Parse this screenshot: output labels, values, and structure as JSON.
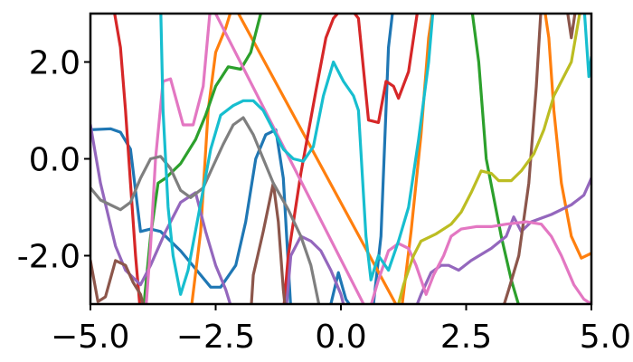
{
  "chart_data": {
    "type": "line",
    "title": "",
    "xlabel": "",
    "ylabel": "",
    "xlim": [
      -5,
      5
    ],
    "ylim": [
      -3,
      3
    ],
    "x_ticks": [
      -5,
      -2.5,
      0,
      2.5,
      5
    ],
    "x_tick_labels": [
      "−5.0",
      "−2.5",
      "0.0",
      "2.5",
      "5.0"
    ],
    "y_ticks": [
      2,
      0,
      -2
    ],
    "y_tick_labels": [
      "2.0",
      "0.0",
      "-2.0"
    ],
    "grid": false,
    "legend": "none",
    "series": [
      {
        "color": "#1f77b4",
        "points": [
          [
            -5,
            0.6
          ],
          [
            -4.6,
            0.62
          ],
          [
            -4.4,
            0.55
          ],
          [
            -4.2,
            0.2
          ],
          [
            -4.0,
            -1.5
          ],
          [
            -3.8,
            -1.45
          ],
          [
            -3.6,
            -1.5
          ],
          [
            -3.2,
            -1.9
          ],
          [
            -2.8,
            -2.4
          ],
          [
            -2.6,
            -2.65
          ],
          [
            -2.4,
            -2.65
          ],
          [
            -2.1,
            -2.2
          ],
          [
            -1.9,
            -1.3
          ],
          [
            -1.7,
            0.0
          ],
          [
            -1.5,
            0.5
          ],
          [
            -1.3,
            0.6
          ],
          [
            -1.15,
            -0.4
          ],
          [
            -1.0,
            -3.1
          ],
          [
            -0.6,
            -3.2
          ],
          [
            -0.4,
            -3.1
          ],
          [
            -0.2,
            -3.0
          ],
          [
            -0.05,
            -2.35
          ],
          [
            0.1,
            -2.9
          ],
          [
            0.3,
            -3.2
          ],
          [
            0.5,
            -3.1
          ],
          [
            0.65,
            -3.0
          ],
          [
            0.8,
            -1.6
          ],
          [
            0.95,
            2.3
          ],
          [
            1.05,
            3.2
          ]
        ]
      },
      {
        "color": "#ff7f0e",
        "points": [
          [
            -3.0,
            -3.2
          ],
          [
            -2.8,
            -1.5
          ],
          [
            -2.65,
            1.0
          ],
          [
            -2.5,
            2.2
          ],
          [
            -2.3,
            2.7
          ],
          [
            -2.15,
            3.2
          ],
          [
            1.2,
            -3.2
          ],
          [
            1.4,
            -1.5
          ],
          [
            1.6,
            0.5
          ],
          [
            1.75,
            2.5
          ],
          [
            1.85,
            3.2
          ],
          [
            3.6,
            3.2
          ],
          [
            4.05,
            3.2
          ],
          [
            4.15,
            2.5
          ],
          [
            4.25,
            1.0
          ],
          [
            4.4,
            -0.5
          ],
          [
            4.6,
            -1.6
          ],
          [
            4.8,
            -2.05
          ],
          [
            5.0,
            -1.95
          ]
        ]
      },
      {
        "color": "#2ca02c",
        "points": [
          [
            -3.95,
            -3.2
          ],
          [
            -3.8,
            -1.6
          ],
          [
            -3.65,
            -0.5
          ],
          [
            -3.5,
            -0.4
          ],
          [
            -3.2,
            -0.1
          ],
          [
            -2.9,
            0.4
          ],
          [
            -2.7,
            0.9
          ],
          [
            -2.5,
            1.5
          ],
          [
            -2.25,
            1.9
          ],
          [
            -2.0,
            1.85
          ],
          [
            -1.8,
            2.2
          ],
          [
            -1.55,
            3.2
          ],
          [
            2.6,
            3.2
          ],
          [
            2.75,
            2.0
          ],
          [
            2.9,
            0.0
          ],
          [
            3.05,
            -0.8
          ],
          [
            3.2,
            -1.6
          ],
          [
            3.4,
            -2.5
          ],
          [
            3.6,
            -3.2
          ]
        ]
      },
      {
        "color": "#d62728",
        "points": [
          [
            -4.55,
            3.2
          ],
          [
            -4.4,
            2.3
          ],
          [
            -4.3,
            1.0
          ],
          [
            -4.2,
            -0.5
          ],
          [
            -4.1,
            -2.0
          ],
          [
            -4.0,
            -3.2
          ],
          [
            -1.15,
            -3.2
          ],
          [
            -1.05,
            -2.0
          ],
          [
            -0.8,
            -0.3
          ],
          [
            -0.5,
            1.4
          ],
          [
            -0.3,
            2.5
          ],
          [
            -0.15,
            2.9
          ],
          [
            0.1,
            3.2
          ],
          [
            0.2,
            3.1
          ],
          [
            0.35,
            2.9
          ],
          [
            0.55,
            0.8
          ],
          [
            0.75,
            0.75
          ],
          [
            0.9,
            1.6
          ],
          [
            1.05,
            1.5
          ],
          [
            1.15,
            1.25
          ],
          [
            1.35,
            1.8
          ],
          [
            1.55,
            3.2
          ]
        ]
      },
      {
        "color": "#9467bd",
        "points": [
          [
            -5,
            0.7
          ],
          [
            -4.8,
            -0.5
          ],
          [
            -4.5,
            -1.8
          ],
          [
            -4.3,
            -2.3
          ],
          [
            -4.0,
            -2.6
          ],
          [
            -3.8,
            -2.2
          ],
          [
            -3.5,
            -1.5
          ],
          [
            -3.2,
            -0.9
          ],
          [
            -2.9,
            -0.7
          ],
          [
            -2.7,
            -1.5
          ],
          [
            -2.5,
            -2.2
          ],
          [
            -2.3,
            -2.7
          ],
          [
            -2.15,
            -3.2
          ],
          [
            -1.1,
            -3.2
          ],
          [
            -1.0,
            -2.0
          ],
          [
            -0.8,
            -1.6
          ],
          [
            -0.6,
            -1.7
          ],
          [
            -0.4,
            -1.9
          ],
          [
            -0.2,
            -2.3
          ],
          [
            0.0,
            -2.8
          ],
          [
            0.1,
            -3.2
          ],
          [
            1.45,
            -3.2
          ],
          [
            1.6,
            -2.8
          ],
          [
            1.8,
            -2.35
          ],
          [
            2.0,
            -2.2
          ],
          [
            2.15,
            -2.2
          ],
          [
            2.35,
            -2.3
          ],
          [
            2.6,
            -2.1
          ],
          [
            3.0,
            -1.85
          ],
          [
            3.3,
            -1.6
          ],
          [
            3.45,
            -1.2
          ],
          [
            3.6,
            -1.5
          ],
          [
            3.8,
            -1.3
          ],
          [
            4.2,
            -1.15
          ],
          [
            4.6,
            -0.95
          ],
          [
            4.85,
            -0.75
          ],
          [
            5.0,
            -0.4
          ]
        ]
      },
      {
        "color": "#8c564b",
        "points": [
          [
            -5,
            -2.1
          ],
          [
            -4.85,
            -2.95
          ],
          [
            -4.7,
            -2.85
          ],
          [
            -4.5,
            -2.1
          ],
          [
            -4.3,
            -2.2
          ],
          [
            -4.15,
            -2.55
          ],
          [
            -4.0,
            -2.8
          ],
          [
            -3.9,
            -3.2
          ],
          [
            -1.8,
            -3.2
          ],
          [
            -1.75,
            -2.4
          ],
          [
            -1.55,
            -1.5
          ],
          [
            -1.35,
            -0.5
          ],
          [
            -1.25,
            -1.3
          ],
          [
            -1.15,
            -2.7
          ],
          [
            -1.1,
            -3.2
          ],
          [
            3.2,
            -3.2
          ],
          [
            3.35,
            -2.7
          ],
          [
            3.55,
            -2.0
          ],
          [
            3.75,
            -0.5
          ],
          [
            3.9,
            1.5
          ],
          [
            4.0,
            3.2
          ],
          [
            4.5,
            3.2
          ],
          [
            4.6,
            2.5
          ],
          [
            4.7,
            3.2
          ]
        ]
      },
      {
        "color": "#e377c2",
        "points": [
          [
            -3.9,
            -3.2
          ],
          [
            -3.8,
            -1.8
          ],
          [
            -3.7,
            0.0
          ],
          [
            -3.55,
            1.6
          ],
          [
            -3.4,
            1.65
          ],
          [
            -3.15,
            0.7
          ],
          [
            -2.95,
            0.7
          ],
          [
            -2.75,
            1.5
          ],
          [
            -2.6,
            3.2
          ],
          [
            0.55,
            -3.2
          ],
          [
            0.75,
            -2.5
          ],
          [
            0.95,
            -1.9
          ],
          [
            1.15,
            -1.75
          ],
          [
            1.35,
            -1.85
          ],
          [
            1.5,
            -2.2
          ],
          [
            1.7,
            -2.8
          ],
          [
            1.85,
            -2.4
          ],
          [
            2.05,
            -2.0
          ],
          [
            2.2,
            -1.6
          ],
          [
            2.4,
            -1.45
          ],
          [
            2.7,
            -1.4
          ],
          [
            3.0,
            -1.4
          ],
          [
            3.3,
            -1.35
          ],
          [
            3.7,
            -1.3
          ],
          [
            4.0,
            -1.35
          ],
          [
            4.2,
            -1.6
          ],
          [
            4.4,
            -2.0
          ],
          [
            4.65,
            -2.6
          ],
          [
            4.85,
            -2.9
          ],
          [
            5.0,
            -3.0
          ]
        ]
      },
      {
        "color": "#7f7f7f",
        "points": [
          [
            -5,
            -0.6
          ],
          [
            -4.8,
            -0.85
          ],
          [
            -4.4,
            -1.05
          ],
          [
            -4.2,
            -0.9
          ],
          [
            -4.0,
            -0.4
          ],
          [
            -3.8,
            0.0
          ],
          [
            -3.6,
            0.05
          ],
          [
            -3.4,
            -0.2
          ],
          [
            -3.2,
            -0.65
          ],
          [
            -3.0,
            -0.8
          ],
          [
            -2.75,
            -0.6
          ],
          [
            -2.55,
            -0.15
          ],
          [
            -2.35,
            0.3
          ],
          [
            -2.15,
            0.7
          ],
          [
            -1.95,
            0.85
          ],
          [
            -1.75,
            0.5
          ],
          [
            -1.55,
            0.0
          ],
          [
            -1.35,
            -0.5
          ],
          [
            -1.05,
            -1.05
          ],
          [
            -0.8,
            -1.6
          ],
          [
            -0.6,
            -2.2
          ],
          [
            -0.5,
            -2.7
          ],
          [
            -0.4,
            -3.2
          ]
        ]
      },
      {
        "color": "#bcbd22",
        "points": [
          [
            1.1,
            -3.2
          ],
          [
            1.25,
            -2.6
          ],
          [
            1.45,
            -2.0
          ],
          [
            1.6,
            -1.7
          ],
          [
            1.9,
            -1.55
          ],
          [
            2.2,
            -1.35
          ],
          [
            2.4,
            -1.1
          ],
          [
            2.6,
            -0.7
          ],
          [
            2.8,
            -0.25
          ],
          [
            3.0,
            -0.3
          ],
          [
            3.15,
            -0.45
          ],
          [
            3.4,
            -0.45
          ],
          [
            3.6,
            -0.25
          ],
          [
            3.85,
            0.1
          ],
          [
            4.05,
            0.6
          ],
          [
            4.25,
            1.3
          ],
          [
            4.6,
            2.0
          ],
          [
            4.8,
            3.2
          ]
        ]
      },
      {
        "color": "#17becf",
        "points": [
          [
            -3.6,
            3.2
          ],
          [
            -3.55,
            1.0
          ],
          [
            -3.45,
            -1.0
          ],
          [
            -3.35,
            -2.0
          ],
          [
            -3.2,
            -2.8
          ],
          [
            -3.05,
            -2.3
          ],
          [
            -2.85,
            -1.2
          ],
          [
            -2.6,
            0.2
          ],
          [
            -2.4,
            0.9
          ],
          [
            -2.15,
            1.1
          ],
          [
            -1.95,
            1.2
          ],
          [
            -1.75,
            1.2
          ],
          [
            -1.55,
            1.0
          ],
          [
            -1.35,
            0.6
          ],
          [
            -1.15,
            0.2
          ],
          [
            -0.95,
            0.0
          ],
          [
            -0.75,
            -0.05
          ],
          [
            -0.55,
            0.25
          ],
          [
            -0.35,
            1.3
          ],
          [
            -0.15,
            2.0
          ],
          [
            0.05,
            1.6
          ],
          [
            0.25,
            1.3
          ],
          [
            0.35,
            1.0
          ],
          [
            0.5,
            -1.6
          ],
          [
            0.6,
            -2.5
          ],
          [
            0.75,
            -2.0
          ],
          [
            0.95,
            -2.3
          ],
          [
            1.15,
            -1.7
          ],
          [
            1.35,
            -1.0
          ],
          [
            1.55,
            0.4
          ],
          [
            1.75,
            2.0
          ],
          [
            1.85,
            3.2
          ],
          [
            4.85,
            3.2
          ],
          [
            4.95,
            1.7
          ],
          [
            5.0,
            2.1
          ]
        ]
      }
    ]
  }
}
